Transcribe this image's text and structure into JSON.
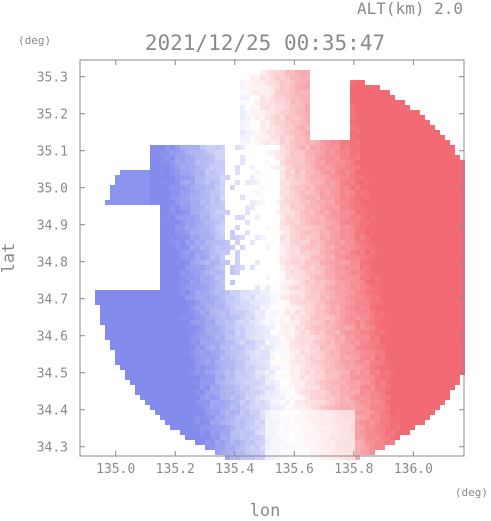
{
  "chart_data": {
    "type": "heatmap",
    "title": "2021/12/25 00:35:47",
    "altitude_label": "ALT(km) 2.0",
    "xlabel": "lon",
    "ylabel": "lat",
    "x_unit": "(deg)",
    "y_unit": "(deg)",
    "xlim": [
      134.88,
      136.17
    ],
    "ylim": [
      34.275,
      35.345
    ],
    "x_ticks": [
      135.0,
      135.2,
      135.4,
      135.6,
      135.8,
      136.0
    ],
    "x_tick_labels": [
      "135.0",
      "135.2",
      "135.4",
      "135.6",
      "135.8",
      "136.0"
    ],
    "y_ticks": [
      34.3,
      34.4,
      34.5,
      34.6,
      34.7,
      34.8,
      34.9,
      35.0,
      35.1,
      35.2,
      35.3
    ],
    "y_tick_labels": [
      "34.3",
      "34.4",
      "34.5",
      "34.6",
      "34.7",
      "34.8",
      "34.9",
      "35.0",
      "35.1",
      "35.2",
      "35.3"
    ],
    "grid": false,
    "colors": {
      "approaching": "#5a64e6",
      "neutral": "#ffffff",
      "receding": "#f0505a",
      "frame": "#8a8a8a"
    },
    "regions": [
      {
        "name": "large-negative-west",
        "lon": [
          134.95,
          135.55
        ],
        "lat": [
          34.3,
          34.72
        ],
        "value": -0.35
      },
      {
        "name": "negative-north-island",
        "lon": [
          135.15,
          135.35
        ],
        "lat": [
          34.85,
          35.1
        ],
        "value": -0.3
      },
      {
        "name": "negative-far-west-patch",
        "lon": [
          134.95,
          135.1
        ],
        "lat": [
          34.95,
          35.05
        ],
        "value": -0.7
      },
      {
        "name": "large-positive-east",
        "lon": [
          135.6,
          136.15
        ],
        "lat": [
          34.5,
          35.1
        ],
        "value": 0.3
      },
      {
        "name": "positive-north-strip",
        "lon": [
          135.45,
          135.65
        ],
        "lat": [
          35.15,
          35.33
        ],
        "value": 0.25
      },
      {
        "name": "strong-positive-northeast-edge",
        "lon": [
          135.95,
          136.15
        ],
        "lat": [
          34.9,
          35.05
        ],
        "value": 0.7
      }
    ]
  }
}
